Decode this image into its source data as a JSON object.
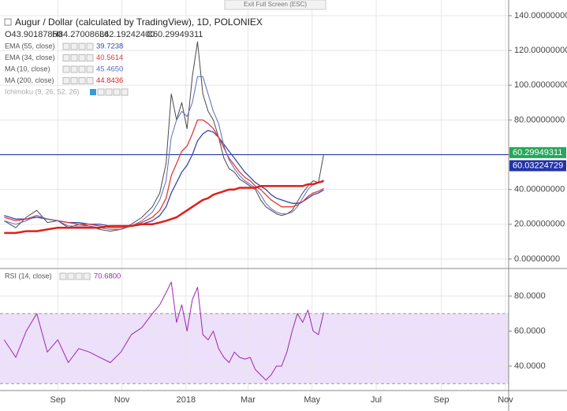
{
  "button": "Exit Full Screen (ESC)",
  "chart_data": [
    {
      "type": "line",
      "title": "Augur / Dollar (calculated by TradingView), 1D, POLONIEX",
      "ohlc": [
        "O43.90187850",
        "H84.27008636",
        "L42.19242400",
        "C60.29949311"
      ],
      "indicators": [
        "Ichimoku (9, 26, 52, 26)"
      ],
      "x": [
        -51,
        -40,
        -30,
        -20,
        -10,
        0,
        10,
        20,
        30,
        40,
        50,
        60,
        70,
        80,
        90,
        97,
        103,
        108,
        113,
        118,
        123,
        128,
        133,
        138,
        143,
        148,
        153,
        158,
        163,
        168,
        173,
        178,
        183,
        188,
        193,
        198,
        203,
        208,
        213,
        218,
        223,
        228,
        233,
        238,
        243,
        248,
        253
      ],
      "xlim": [
        -55,
        429
      ],
      "ylim": [
        -5,
        144.5
      ],
      "yticks": [
        {
          "value": 0,
          "label": "0.00000000"
        },
        {
          "value": 20,
          "label": "20.00000000"
        },
        {
          "value": 40,
          "label": "40.00000000"
        },
        {
          "value": 60,
          "label": "60.00000000"
        },
        {
          "value": 80,
          "label": "80.00000000"
        },
        {
          "value": 100,
          "label": "100.00000000"
        },
        {
          "value": 120,
          "label": "120.00000000"
        },
        {
          "value": 140,
          "label": "140.00000000"
        }
      ],
      "hline": 60.03224729,
      "hline_color": "#2433a8",
      "series": [
        {
          "color": "#4a4a4a",
          "width": 1,
          "values": [
            22,
            18,
            24,
            28,
            21,
            22,
            18,
            20,
            19,
            17,
            16,
            17,
            20,
            24,
            30,
            38,
            55,
            95,
            80,
            90,
            75,
            105,
            125,
            95,
            85,
            80,
            70,
            58,
            52,
            50,
            46,
            44,
            42,
            40,
            34,
            30,
            28,
            26,
            25,
            26,
            28,
            33,
            38,
            42,
            45,
            44,
            60.29949311
          ]
        },
        {
          "name": "EMA (55, close)",
          "color": "#3949ab",
          "width": 1.3,
          "values": [
            25,
            23,
            23,
            24,
            23,
            22,
            21,
            21,
            20,
            20,
            19,
            19,
            19,
            20,
            22,
            25,
            30,
            38,
            44,
            50,
            54,
            60,
            68,
            72,
            74,
            73,
            70,
            66,
            62,
            58,
            54,
            50,
            47,
            44,
            42,
            40,
            37,
            35,
            34,
            33,
            32,
            32,
            33,
            35,
            37,
            38,
            39.7238
          ],
          "value_labels": [
            null,
            null,
            null,
            null,
            null,
            null,
            null,
            null,
            null,
            null,
            null,
            null,
            null,
            null,
            null,
            null,
            null,
            null,
            null,
            null,
            null,
            null,
            null,
            null,
            null,
            null,
            null,
            null,
            null,
            null,
            null,
            null,
            null,
            null,
            null,
            null,
            null,
            null,
            null,
            null,
            null,
            null,
            null,
            null,
            null,
            null,
            "39.7238"
          ]
        },
        {
          "name": "EMA (34, close)",
          "color": "#e53935",
          "width": 1.3,
          "values": [
            24,
            22,
            23,
            25,
            23,
            22,
            21,
            20,
            20,
            19,
            18,
            18,
            19,
            21,
            24,
            28,
            35,
            48,
            55,
            62,
            65,
            72,
            80,
            80,
            78,
            75,
            70,
            64,
            58,
            54,
            50,
            47,
            45,
            42,
            40,
            37,
            34,
            32,
            30,
            30,
            30,
            31,
            33,
            36,
            38,
            39,
            40.5614
          ],
          "value_labels": [
            null,
            null,
            null,
            null,
            null,
            null,
            null,
            null,
            null,
            null,
            null,
            null,
            null,
            null,
            null,
            null,
            null,
            null,
            null,
            null,
            null,
            null,
            null,
            null,
            null,
            null,
            null,
            null,
            null,
            null,
            null,
            null,
            null,
            null,
            null,
            null,
            null,
            null,
            null,
            null,
            null,
            null,
            null,
            null,
            null,
            null,
            "40.5614"
          ]
        },
        {
          "name": "MA (10, close)",
          "color": "#5c6bc0",
          "width": 1,
          "values": [
            22,
            20,
            22,
            25,
            23,
            22,
            19,
            19,
            19,
            18,
            17,
            17,
            19,
            22,
            27,
            34,
            45,
            70,
            80,
            85,
            82,
            90,
            105,
            105,
            95,
            85,
            78,
            65,
            57,
            52,
            48,
            45,
            43,
            41,
            37,
            32,
            29,
            27,
            26,
            26,
            27,
            30,
            35,
            40,
            43,
            44,
            45.465
          ],
          "value_labels": [
            null,
            null,
            null,
            null,
            null,
            null,
            null,
            null,
            null,
            null,
            null,
            null,
            null,
            null,
            null,
            null,
            null,
            null,
            null,
            null,
            null,
            null,
            null,
            null,
            null,
            null,
            null,
            null,
            null,
            null,
            null,
            null,
            null,
            null,
            null,
            null,
            null,
            null,
            null,
            null,
            null,
            null,
            null,
            null,
            null,
            null,
            "45.4650"
          ]
        },
        {
          "name": "MA (200, close)",
          "color": "#e0201b",
          "width": 2.5,
          "values": [
            15,
            15,
            16,
            16,
            17,
            18,
            18,
            18,
            18,
            18,
            19,
            19,
            19,
            20,
            20,
            21,
            22,
            23,
            24,
            26,
            28,
            30,
            32,
            34,
            35,
            37,
            38,
            39,
            40,
            40,
            41,
            41,
            41,
            41,
            42,
            42,
            42,
            42,
            42,
            42,
            42,
            42,
            42,
            43,
            43,
            44,
            44.8436
          ],
          "value_labels": [
            null,
            null,
            null,
            null,
            null,
            null,
            null,
            null,
            null,
            null,
            null,
            null,
            null,
            null,
            null,
            null,
            null,
            null,
            null,
            null,
            null,
            null,
            null,
            null,
            null,
            null,
            null,
            null,
            null,
            null,
            null,
            null,
            null,
            null,
            null,
            null,
            null,
            null,
            null,
            null,
            null,
            null,
            null,
            null,
            null,
            null,
            "44.8436"
          ]
        }
      ]
    },
    {
      "type": "line",
      "x": [
        -51,
        -40,
        -30,
        -20,
        -10,
        0,
        10,
        20,
        30,
        40,
        50,
        60,
        70,
        80,
        90,
        97,
        103,
        108,
        113,
        118,
        123,
        128,
        133,
        138,
        143,
        148,
        153,
        158,
        163,
        168,
        173,
        178,
        183,
        188,
        193,
        198,
        203,
        208,
        213,
        218,
        223,
        228,
        233,
        238,
        243,
        248,
        253
      ],
      "xlim": [
        -55,
        429
      ],
      "xticks": [
        {
          "value": 0,
          "label": "Sep"
        },
        {
          "value": 61,
          "label": "Nov"
        },
        {
          "value": 122,
          "label": "2018"
        },
        {
          "value": 181,
          "label": "Mar"
        },
        {
          "value": 242,
          "label": "May"
        },
        {
          "value": 303,
          "label": "Jul"
        },
        {
          "value": 365,
          "label": "Sep"
        },
        {
          "value": 426,
          "label": "Nov"
        }
      ],
      "ylim": [
        26.5,
        95.3
      ],
      "yticks": [
        {
          "value": 40,
          "label": "40.0000"
        },
        {
          "value": 60,
          "label": "60.0000"
        },
        {
          "value": 80,
          "label": "80.0000"
        }
      ],
      "band": [
        30,
        70
      ],
      "band_color": "#ede0fa",
      "series": [
        {
          "name": "RSI (14, close)",
          "color": "#9c27b0",
          "width": 1,
          "values": [
            55,
            45,
            60,
            70,
            48,
            55,
            42,
            50,
            48,
            45,
            42,
            48,
            58,
            62,
            70,
            75,
            82,
            88,
            65,
            75,
            60,
            78,
            85,
            58,
            55,
            60,
            50,
            45,
            42,
            48,
            45,
            44,
            45,
            38,
            35,
            32,
            35,
            40,
            40,
            48,
            60,
            70,
            65,
            72,
            60,
            58,
            70.68
          ],
          "value_labels": [
            null,
            null,
            null,
            null,
            null,
            null,
            null,
            null,
            null,
            null,
            null,
            null,
            null,
            null,
            null,
            null,
            null,
            null,
            null,
            null,
            null,
            null,
            null,
            null,
            null,
            null,
            null,
            null,
            null,
            null,
            null,
            null,
            null,
            null,
            null,
            null,
            null,
            null,
            null,
            null,
            null,
            null,
            null,
            null,
            null,
            null,
            "70.6800"
          ]
        }
      ]
    }
  ]
}
